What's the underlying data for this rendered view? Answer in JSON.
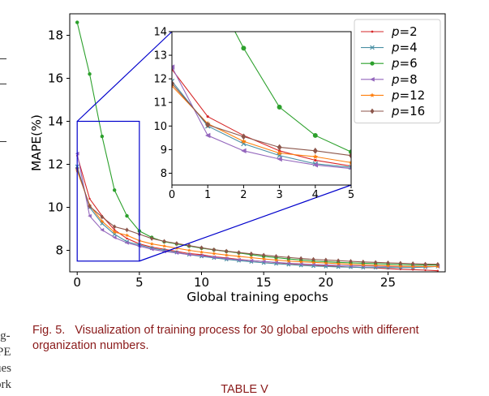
{
  "chart_data": {
    "type": "line",
    "xlabel": "Global training epochs",
    "ylabel": "MAPE(%)",
    "xlim": [
      -0.6,
      29.6
    ],
    "ylim": [
      7.0,
      19.0
    ],
    "xticks": [
      0,
      5,
      10,
      15,
      20,
      25
    ],
    "yticks": [
      8,
      10,
      12,
      14,
      16,
      18
    ],
    "grid": false,
    "legend_position": "top-right",
    "x": [
      0,
      1,
      2,
      3,
      4,
      5,
      6,
      7,
      8,
      9,
      10,
      11,
      12,
      13,
      14,
      15,
      16,
      17,
      18,
      19,
      20,
      21,
      22,
      23,
      24,
      25,
      26,
      27,
      28,
      29
    ],
    "series": [
      {
        "name": "p=2",
        "color": "#d62728",
        "marker": "point",
        "values": [
          12.4,
          10.4,
          9.6,
          8.95,
          8.55,
          8.3,
          8.15,
          8.05,
          7.95,
          7.85,
          7.8,
          7.7,
          7.65,
          7.58,
          7.52,
          7.48,
          7.43,
          7.38,
          7.35,
          7.32,
          7.28,
          7.25,
          7.22,
          7.2,
          7.18,
          7.15,
          7.12,
          7.1,
          7.08,
          7.05
        ]
      },
      {
        "name": "p=4",
        "color": "#4a90a4",
        "marker": "x",
        "values": [
          11.9,
          10.0,
          9.25,
          8.75,
          8.4,
          8.25,
          8.1,
          8.0,
          7.9,
          7.8,
          7.72,
          7.65,
          7.58,
          7.52,
          7.47,
          7.42,
          7.38,
          7.34,
          7.3,
          7.27,
          7.25,
          7.23,
          7.22,
          7.2,
          7.2,
          7.2,
          7.2,
          7.2,
          7.22,
          7.25
        ]
      },
      {
        "name": "p=6",
        "color": "#2ca02c",
        "marker": "circle",
        "values": [
          18.6,
          16.2,
          13.3,
          10.8,
          9.6,
          8.9,
          8.6,
          8.4,
          8.3,
          8.2,
          8.1,
          8.02,
          7.95,
          7.88,
          7.8,
          7.72,
          7.66,
          7.6,
          7.55,
          7.5,
          7.47,
          7.44,
          7.42,
          7.4,
          7.38,
          7.36,
          7.34,
          7.32,
          7.32,
          7.32
        ]
      },
      {
        "name": "p=8",
        "color": "#9467bd",
        "marker": "triangle-left",
        "values": [
          12.5,
          9.6,
          8.95,
          8.6,
          8.35,
          8.2,
          8.05,
          7.95,
          7.88,
          7.8,
          7.75,
          7.68,
          7.62,
          7.56,
          7.52,
          7.48,
          7.44,
          7.4,
          7.37,
          7.34,
          7.32,
          7.3,
          7.28,
          7.27,
          7.26,
          7.25,
          7.25,
          7.25,
          7.25,
          7.25
        ]
      },
      {
        "name": "p=12",
        "color": "#ff7f0e",
        "marker": "star",
        "values": [
          11.7,
          10.1,
          9.35,
          8.85,
          8.7,
          8.45,
          8.3,
          8.2,
          8.1,
          8.0,
          7.92,
          7.85,
          7.78,
          7.72,
          7.66,
          7.6,
          7.55,
          7.5,
          7.47,
          7.44,
          7.41,
          7.38,
          7.35,
          7.32,
          7.3,
          7.28,
          7.26,
          7.25,
          7.25,
          7.25
        ]
      },
      {
        "name": "p=16",
        "color": "#8c564b",
        "marker": "diamond",
        "values": [
          11.8,
          10.05,
          9.55,
          9.1,
          8.95,
          8.75,
          8.55,
          8.42,
          8.32,
          8.22,
          8.12,
          8.03,
          7.96,
          7.9,
          7.84,
          7.78,
          7.72,
          7.67,
          7.62,
          7.58,
          7.55,
          7.52,
          7.49,
          7.46,
          7.44,
          7.42,
          7.4,
          7.38,
          7.36,
          7.35
        ]
      }
    ],
    "inset": {
      "xlim": [
        0,
        5
      ],
      "ylim": [
        7.5,
        14.0
      ],
      "xticks": [
        0,
        1,
        2,
        3,
        4,
        5
      ],
      "yticks": [
        8,
        9,
        10,
        11,
        12,
        13,
        14
      ],
      "zoom_box": {
        "x": [
          0,
          5
        ],
        "y": [
          7.5,
          14.0
        ]
      },
      "box_color": "#0000cc"
    }
  },
  "caption": {
    "label": "Fig. 5.",
    "text": "Visualization of training process for 30 global epochs with different organization numbers."
  },
  "table_title": "TABLE V",
  "edge_fragments": [
    "ig-",
    "PE",
    "ues",
    "ork"
  ]
}
